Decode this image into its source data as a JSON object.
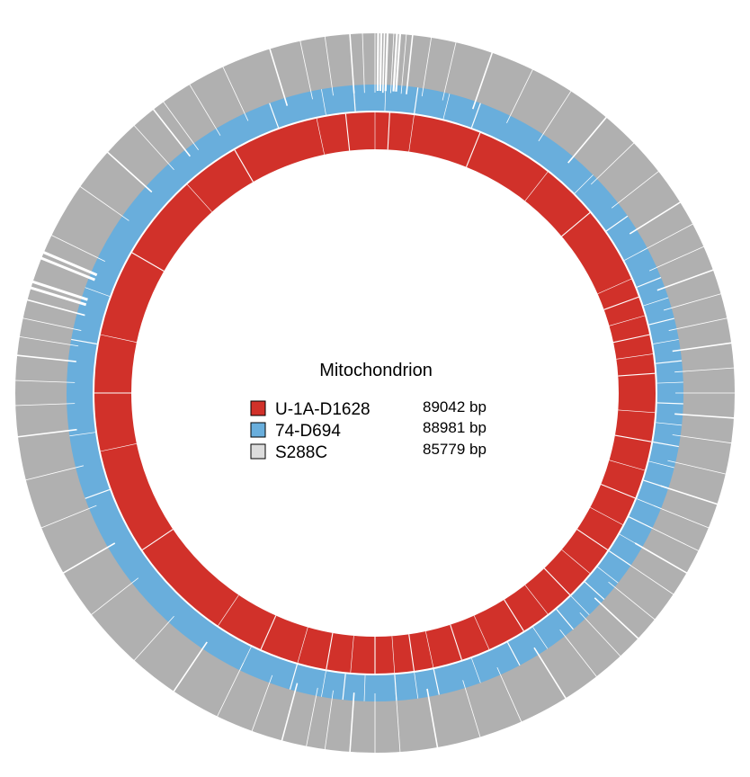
{
  "title": "Mitochondrion",
  "genomes": [
    {
      "name": "U-1A-D1628",
      "size": "89042 bp",
      "color": "#d1312a"
    },
    {
      "name": "74-D694",
      "size": "88981 bp",
      "color": "#69aedc"
    },
    {
      "name": "S288C",
      "size": "85779 bp",
      "color": "#b0b0b0",
      "swatch_color": "#dcdcdc"
    }
  ],
  "gap_color": "#ffffff"
}
